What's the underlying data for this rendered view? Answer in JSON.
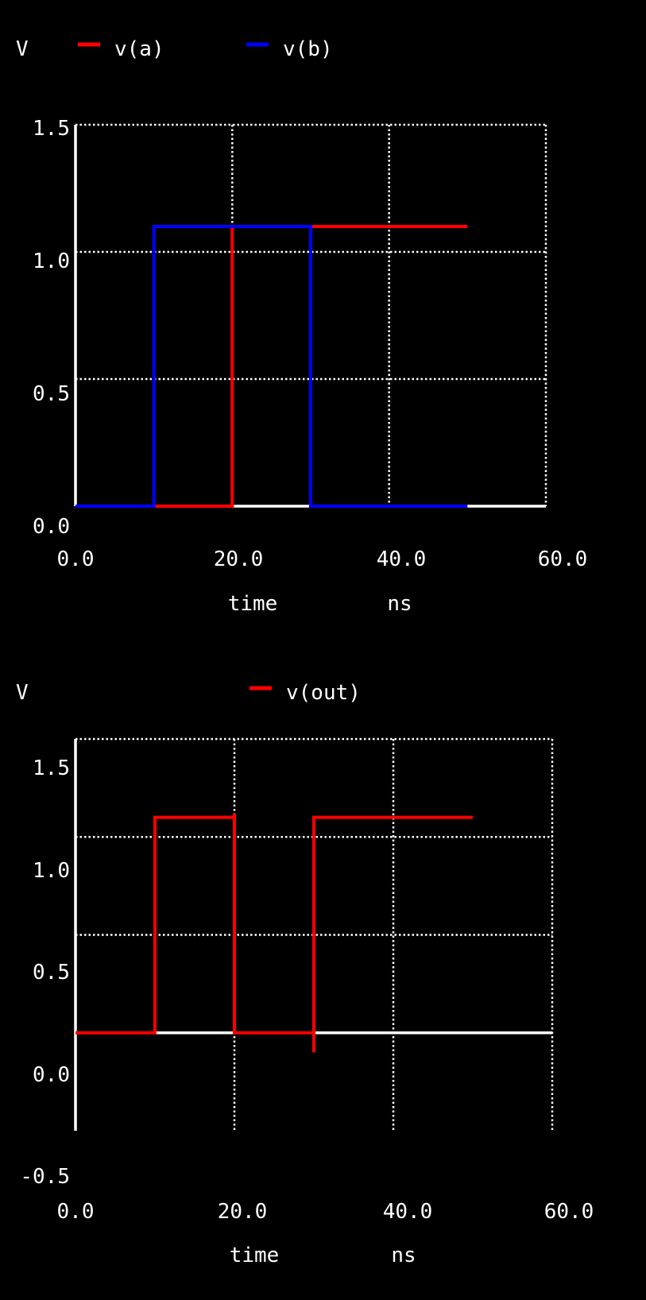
{
  "chart_data": [
    {
      "type": "line",
      "ylabel": "V",
      "xlabel": "time",
      "xunit": "ns",
      "xlim": [
        0,
        60
      ],
      "ylim": [
        0,
        1.5
      ],
      "xticks": [
        "0.0",
        "20.0",
        "40.0",
        "60.0"
      ],
      "yticks": [
        "1.5",
        "1.0",
        "0.5",
        "0.0"
      ],
      "grid": true,
      "legend": "top",
      "series": [
        {
          "name": "v(a)",
          "color": "#ff0000",
          "x": [
            0,
            20,
            20,
            50
          ],
          "y": [
            0,
            0,
            1.1,
            1.1
          ]
        },
        {
          "name": "v(b)",
          "color": "#0000ff",
          "x": [
            0,
            10,
            10,
            30,
            30,
            50
          ],
          "y": [
            0,
            0,
            1.1,
            1.1,
            0,
            0
          ]
        }
      ]
    },
    {
      "type": "line",
      "ylabel": "V",
      "xlabel": "time",
      "xunit": "ns",
      "xlim": [
        0,
        60
      ],
      "ylim": [
        -0.5,
        1.5
      ],
      "xticks": [
        "0.0",
        "20.0",
        "40.0",
        "60.0"
      ],
      "yticks": [
        "1.5",
        "1.0",
        "0.5",
        "0.0",
        "-0.5"
      ],
      "grid": true,
      "legend": "top",
      "series": [
        {
          "name": "v(out)",
          "color": "#ff0000",
          "x": [
            0,
            10,
            10,
            20,
            20,
            20,
            30,
            30,
            30,
            50
          ],
          "y": [
            0,
            0,
            1.1,
            1.1,
            1.12,
            0,
            0,
            -0.1,
            1.1,
            1.1
          ]
        }
      ]
    }
  ]
}
